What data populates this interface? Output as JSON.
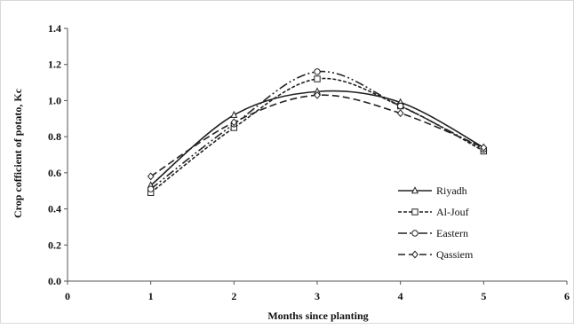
{
  "chart_data": {
    "type": "line",
    "title": "",
    "xlabel": "Months since planting",
    "ylabel": "Crop cofficient of potato, Kc",
    "xlim": [
      0,
      6
    ],
    "ylim": [
      0,
      1.4
    ],
    "x_ticks": [
      "0",
      "1",
      "2",
      "3",
      "4",
      "5",
      "6"
    ],
    "y_ticks": [
      "0.0",
      "0.2",
      "0.4",
      "0.6",
      "0.8",
      "1.0",
      "1.2",
      "1.4"
    ],
    "grid": false,
    "legend_position": "bottom-right",
    "x": [
      1,
      2,
      3,
      4,
      5
    ],
    "series": [
      {
        "name": "Riyadh",
        "values": [
          0.53,
          0.92,
          1.05,
          0.99,
          0.74
        ],
        "marker": "triangle",
        "dash": "solid",
        "color": "#222222"
      },
      {
        "name": "Al-Jouf",
        "values": [
          0.49,
          0.85,
          1.12,
          0.97,
          0.72
        ],
        "marker": "square",
        "dash": "short-dash",
        "color": "#222222"
      },
      {
        "name": "Eastern",
        "values": [
          0.51,
          0.87,
          1.16,
          0.97,
          0.73
        ],
        "marker": "circle",
        "dash": "dash-dot-dot",
        "color": "#222222"
      },
      {
        "name": "Qassiem",
        "values": [
          0.58,
          0.88,
          1.03,
          0.93,
          0.74
        ],
        "marker": "diamond",
        "dash": "long-dash",
        "color": "#222222"
      }
    ]
  }
}
